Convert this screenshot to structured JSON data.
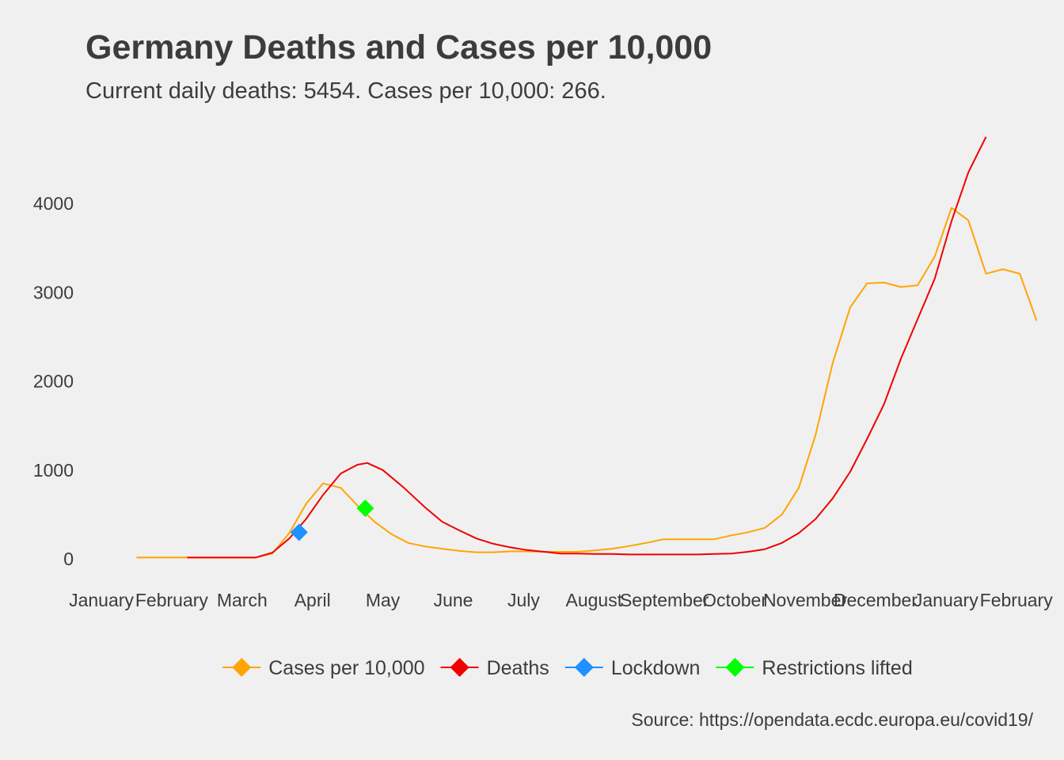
{
  "chart_data": {
    "type": "line",
    "title": "Germany Deaths and Cases per 10,000",
    "subtitle": "Current daily deaths: 5454. Cases per 10,000: 266.",
    "caption": "Source: https://opendata.ecdc.europa.eu/covid19/",
    "xlabel": "",
    "ylabel": "",
    "ylim": [
      -240,
      4800
    ],
    "xlim": [
      0,
      13.6
    ],
    "y_ticks": [
      0,
      1000,
      2000,
      3000,
      4000
    ],
    "x_tick_labels": [
      "January",
      "February",
      "March",
      "April",
      "May",
      "June",
      "July",
      "August",
      "September",
      "October",
      "November",
      "December",
      "January",
      "February"
    ],
    "grid": false,
    "legend_position": "bottom",
    "series": [
      {
        "name": "Cases per 10,000",
        "color": "#FFA500",
        "points": [
          [
            0.5,
            15
          ],
          [
            0.74,
            15
          ],
          [
            0.98,
            15
          ],
          [
            1.22,
            15
          ],
          [
            1.47,
            15
          ],
          [
            1.71,
            15
          ],
          [
            1.95,
            15
          ],
          [
            2.19,
            15
          ],
          [
            2.43,
            60
          ],
          [
            2.67,
            290
          ],
          [
            2.91,
            620
          ],
          [
            3.15,
            850
          ],
          [
            3.4,
            800
          ],
          [
            3.64,
            600
          ],
          [
            3.88,
            420
          ],
          [
            4.12,
            280
          ],
          [
            4.36,
            180
          ],
          [
            4.6,
            140
          ],
          [
            4.84,
            115
          ],
          [
            5.09,
            90
          ],
          [
            5.33,
            75
          ],
          [
            5.57,
            75
          ],
          [
            5.81,
            85
          ],
          [
            6.05,
            85
          ],
          [
            6.29,
            80
          ],
          [
            6.53,
            80
          ],
          [
            6.77,
            80
          ],
          [
            7.02,
            95
          ],
          [
            7.26,
            115
          ],
          [
            7.5,
            145
          ],
          [
            7.74,
            180
          ],
          [
            7.98,
            220
          ],
          [
            8.22,
            220
          ],
          [
            8.46,
            220
          ],
          [
            8.7,
            220
          ],
          [
            8.95,
            265
          ],
          [
            9.19,
            300
          ],
          [
            9.43,
            350
          ],
          [
            9.67,
            500
          ],
          [
            9.91,
            800
          ],
          [
            10.15,
            1400
          ],
          [
            10.39,
            2200
          ],
          [
            10.64,
            2830
          ],
          [
            10.88,
            3100
          ],
          [
            11.12,
            3110
          ],
          [
            11.36,
            3060
          ],
          [
            11.6,
            3080
          ],
          [
            11.84,
            3400
          ],
          [
            12.08,
            3950
          ],
          [
            12.32,
            3810
          ],
          [
            12.57,
            3210
          ],
          [
            12.81,
            3260
          ],
          [
            13.05,
            3210
          ],
          [
            13.29,
            2680
          ]
        ]
      },
      {
        "name": "Deaths",
        "color": "#F00000",
        "points": [
          [
            1.22,
            15
          ],
          [
            1.47,
            15
          ],
          [
            1.71,
            15
          ],
          [
            1.95,
            15
          ],
          [
            2.19,
            15
          ],
          [
            2.43,
            70
          ],
          [
            2.67,
            230
          ],
          [
            2.91,
            450
          ],
          [
            3.15,
            720
          ],
          [
            3.4,
            960
          ],
          [
            3.64,
            1060
          ],
          [
            3.78,
            1080
          ],
          [
            4.0,
            1000
          ],
          [
            4.3,
            800
          ],
          [
            4.6,
            580
          ],
          [
            4.84,
            420
          ],
          [
            5.09,
            320
          ],
          [
            5.33,
            230
          ],
          [
            5.57,
            170
          ],
          [
            5.81,
            130
          ],
          [
            6.05,
            100
          ],
          [
            6.29,
            80
          ],
          [
            6.53,
            60
          ],
          [
            6.77,
            60
          ],
          [
            7.02,
            55
          ],
          [
            7.26,
            55
          ],
          [
            7.5,
            50
          ],
          [
            7.74,
            50
          ],
          [
            7.98,
            50
          ],
          [
            8.22,
            50
          ],
          [
            8.46,
            50
          ],
          [
            8.7,
            55
          ],
          [
            8.95,
            60
          ],
          [
            9.19,
            80
          ],
          [
            9.43,
            110
          ],
          [
            9.67,
            180
          ],
          [
            9.91,
            290
          ],
          [
            10.15,
            450
          ],
          [
            10.39,
            680
          ],
          [
            10.64,
            980
          ],
          [
            10.88,
            1350
          ],
          [
            11.12,
            1740
          ],
          [
            11.36,
            2250
          ],
          [
            11.6,
            2700
          ],
          [
            11.84,
            3150
          ],
          [
            12.08,
            3800
          ],
          [
            12.32,
            4350
          ],
          [
            12.57,
            4750
          ]
        ]
      },
      {
        "name": "Lockdown",
        "color": "#1E90FF",
        "points": [
          [
            2.81,
            300
          ]
        ]
      },
      {
        "name": "Restrictions lifted",
        "color": "#00FF00",
        "points": [
          [
            3.75,
            570
          ]
        ]
      }
    ]
  }
}
